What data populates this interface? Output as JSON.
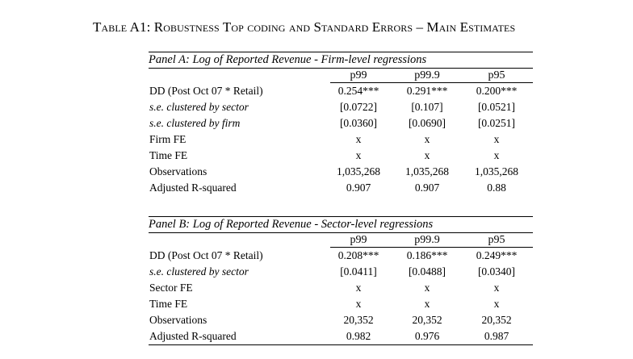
{
  "table_title": "Table A1: Robustness Top coding and Standard Errors – Main Estimates",
  "columns": [
    "p99",
    "p99.9",
    "p95"
  ],
  "panel_a": {
    "title": "Panel A: Log of Reported Revenue - Firm-level regressions",
    "rows": [
      {
        "label": "DD (Post Oct 07 * Retail)",
        "italic": false,
        "values": [
          "0.254***",
          "0.291***",
          "0.200***"
        ]
      },
      {
        "label": "s.e. clustered by sector",
        "italic": true,
        "values": [
          "[0.0722]",
          "[0.107]",
          "[0.0521]"
        ]
      },
      {
        "label": "s.e. clustered by firm",
        "italic": true,
        "values": [
          "[0.0360]",
          "[0.0690]",
          "[0.0251]"
        ]
      },
      {
        "label": "Firm FE",
        "italic": false,
        "values": [
          "x",
          "x",
          "x"
        ]
      },
      {
        "label": "Time FE",
        "italic": false,
        "values": [
          "x",
          "x",
          "x"
        ]
      },
      {
        "label": "Observations",
        "italic": false,
        "values": [
          "1,035,268",
          "1,035,268",
          "1,035,268"
        ]
      },
      {
        "label": "Adjusted R-squared",
        "italic": false,
        "values": [
          "0.907",
          "0.907",
          "0.88"
        ]
      }
    ]
  },
  "panel_b": {
    "title": "Panel B: Log of Reported Revenue - Sector-level regressions",
    "rows": [
      {
        "label": "DD (Post Oct 07 * Retail)",
        "italic": false,
        "values": [
          "0.208***",
          "0.186***",
          "0.249***"
        ]
      },
      {
        "label": "s.e. clustered by sector",
        "italic": true,
        "values": [
          "[0.0411]",
          "[0.0488]",
          "[0.0340]"
        ]
      },
      {
        "label": "Sector FE",
        "italic": false,
        "values": [
          "x",
          "x",
          "x"
        ]
      },
      {
        "label": "Time FE",
        "italic": false,
        "values": [
          "x",
          "x",
          "x"
        ]
      },
      {
        "label": "Observations",
        "italic": false,
        "values": [
          "20,352",
          "20,352",
          "20,352"
        ]
      },
      {
        "label": "Adjusted R-squared",
        "italic": false,
        "values": [
          "0.982",
          "0.976",
          "0.987"
        ]
      }
    ]
  }
}
